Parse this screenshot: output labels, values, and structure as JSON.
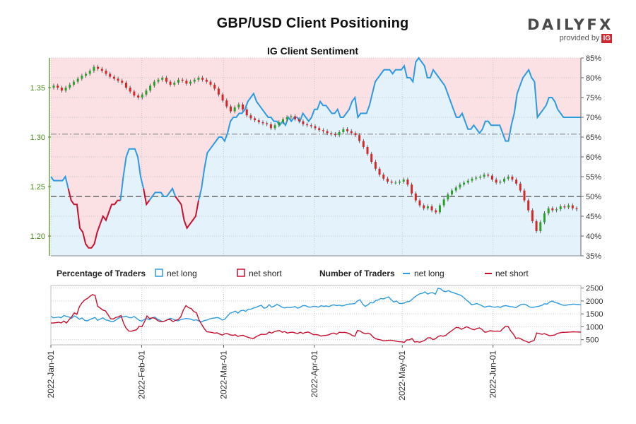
{
  "header": {
    "title": "GBP/USD Client Positioning",
    "subtitle": "IG Client Sentiment",
    "logo_main": "DAILYFX",
    "logo_sub": "provided by",
    "logo_badge": "IG"
  },
  "colors": {
    "up": "#2ca02c",
    "down": "#d62728",
    "net_long": "#2e9ae0",
    "net_short": "#c7102e",
    "long_fill": "#e3f2fb",
    "short_fill": "#fbe1e3"
  },
  "chart_data": [
    {
      "type": "candlestick",
      "y_left_ticks": [
        "1.20",
        "1.25",
        "1.30",
        "1.35"
      ],
      "y_left_range": [
        1.18,
        1.38
      ],
      "y_right_ticks": [
        "35%",
        "40%",
        "45%",
        "50%",
        "55%",
        "60%",
        "65%",
        "70%",
        "75%",
        "80%",
        "85%"
      ],
      "y_right_range": [
        35,
        85
      ],
      "reference_lines": [
        1.303,
        50
      ],
      "closes": [
        1.352,
        1.35,
        1.347,
        1.35,
        1.353,
        1.356,
        1.359,
        1.362,
        1.364,
        1.367,
        1.371,
        1.369,
        1.367,
        1.364,
        1.361,
        1.359,
        1.357,
        1.355,
        1.35,
        1.346,
        1.342,
        1.34,
        1.343,
        1.347,
        1.352,
        1.356,
        1.358,
        1.36,
        1.356,
        1.353,
        1.355,
        1.358,
        1.357,
        1.354,
        1.356,
        1.358,
        1.36,
        1.358,
        1.356,
        1.353,
        1.349,
        1.343,
        1.337,
        1.331,
        1.326,
        1.33,
        1.333,
        1.328,
        1.322,
        1.319,
        1.317,
        1.315,
        1.314,
        1.313,
        1.309,
        1.312,
        1.315,
        1.318,
        1.32,
        1.321,
        1.318,
        1.316,
        1.313,
        1.312,
        1.311,
        1.309,
        1.307,
        1.306,
        1.304,
        1.303,
        1.302,
        1.305,
        1.308,
        1.306,
        1.304,
        1.302,
        1.296,
        1.29,
        1.283,
        1.275,
        1.268,
        1.262,
        1.258,
        1.255,
        1.254,
        1.254,
        1.255,
        1.257,
        1.252,
        1.243,
        1.236,
        1.231,
        1.228,
        1.23,
        1.226,
        1.224,
        1.231,
        1.237,
        1.242,
        1.246,
        1.249,
        1.252,
        1.254,
        1.256,
        1.258,
        1.259,
        1.26,
        1.262,
        1.261,
        1.257,
        1.254,
        1.255,
        1.258,
        1.26,
        1.257,
        1.253,
        1.246,
        1.236,
        1.226,
        1.215,
        1.205,
        1.214,
        1.223,
        1.228,
        1.226,
        1.227,
        1.23,
        1.229,
        1.231,
        1.228,
        1.227
      ],
      "pct_long_series": {
        "name": "net long",
        "values": [
          55,
          54,
          54,
          54,
          54,
          55,
          52,
          49,
          48,
          48,
          42,
          41,
          38,
          37,
          37,
          38,
          41,
          43,
          45,
          44,
          46,
          48,
          48,
          49,
          49,
          55,
          60,
          62,
          62,
          62,
          60,
          55,
          52,
          48,
          49,
          50,
          51,
          51,
          51,
          50,
          50,
          51,
          52,
          50,
          49,
          48,
          44,
          42,
          43,
          44,
          45,
          49,
          52,
          57,
          61,
          62,
          63,
          64,
          65,
          65,
          64,
          66,
          69,
          70,
          70,
          71,
          71,
          72,
          74,
          75,
          76,
          74,
          73,
          72,
          71,
          70,
          70,
          69,
          69,
          68,
          69,
          68,
          70,
          69,
          70,
          70,
          69,
          71,
          70,
          69,
          70,
          72,
          72,
          74,
          73,
          73,
          72,
          71,
          71,
          72,
          70,
          70,
          71,
          72,
          74,
          75,
          70,
          71,
          71,
          71,
          73,
          76,
          79,
          80,
          81,
          82,
          82,
          82,
          81,
          82,
          82,
          82,
          83,
          80,
          80,
          79,
          84,
          85,
          84,
          83,
          80,
          80,
          82,
          81,
          80,
          79,
          78,
          76,
          74,
          72,
          70,
          70,
          71,
          69,
          67,
          67,
          68,
          67,
          66,
          67,
          69,
          69,
          68,
          68,
          68,
          68,
          66,
          64,
          64,
          68,
          71,
          76,
          78,
          80,
          81,
          82,
          80,
          79,
          70,
          71,
          72,
          73,
          75,
          75,
          74,
          72,
          71,
          70,
          70,
          70,
          70,
          70,
          70,
          70
        ]
      },
      "traders_axis_ticks": [
        "500",
        "1000",
        "1500",
        "2000",
        "2500"
      ],
      "traders_axis_range": [
        300,
        2600
      ],
      "x_tick_labels": [
        "2022-Jan-01",
        "2022-Feb-01",
        "2022-Mar-01",
        "2022-Apr-01",
        "2022-May-01",
        "2022-Jun-01"
      ]
    },
    {
      "type": "line",
      "series_net_long_values": [
        1400,
        1350,
        1360,
        1380,
        1350,
        1440,
        1400,
        1380,
        1330,
        1420,
        1370,
        1290,
        1340,
        1250,
        1230,
        1280,
        1320,
        1360,
        1250,
        1300,
        1350,
        1270,
        1250,
        1210,
        1200,
        1260,
        1330,
        1380,
        1390,
        1410,
        1360,
        1350,
        1400,
        1330,
        1250,
        1220,
        1290,
        1310,
        1270,
        1350,
        1380,
        1300,
        1250,
        1200,
        1230,
        1280,
        1330,
        1300,
        1250,
        1230,
        1280,
        1300,
        1320,
        1310,
        1290,
        1250,
        1270,
        1220,
        1190,
        1240,
        1260,
        1300,
        1330,
        1340,
        1360,
        1330,
        1260,
        1300,
        1420,
        1530,
        1560,
        1610,
        1530,
        1620,
        1640,
        1600,
        1680,
        1680,
        1730,
        1750,
        1800,
        1830,
        1720,
        1740,
        1860,
        1760,
        1800,
        1870,
        1820,
        1760,
        1730,
        1760,
        1740,
        1760,
        1780,
        1720,
        1760,
        1820,
        1820,
        1770,
        1760,
        1790,
        1790,
        1760,
        1820,
        1790,
        1810,
        1780,
        1830,
        1850,
        1820,
        1840,
        1810,
        1830,
        1870,
        1880,
        1890,
        1900,
        2000,
        2050,
        1880,
        1790,
        1850,
        1940,
        1920,
        2020,
        2040,
        2100,
        2080,
        2120,
        2160,
        2050,
        1960,
        2000,
        1910,
        1900,
        1920,
        1970,
        1980,
        2060,
        2150,
        2220,
        2280,
        2300,
        2350,
        2270,
        2310,
        2320,
        2260,
        2490,
        2470,
        2390,
        2360,
        2400,
        2350,
        2320,
        2280,
        2250,
        2210,
        2120,
        2030,
        1950,
        1850,
        1880,
        1900,
        1860,
        1810,
        1760,
        1790,
        1800,
        1770,
        1760,
        1780,
        1750,
        1800,
        1820,
        1800,
        1780,
        1770,
        1740,
        1810,
        1860,
        1880,
        1850,
        1780,
        1750,
        1760,
        1780,
        1800,
        1830,
        1890,
        1880,
        1960,
        2000,
        1940,
        1920,
        1880,
        1840,
        1830,
        1850,
        1860,
        1880,
        1870,
        1860,
        1850
      ]
    }
  ],
  "legend": {
    "pct_title": "Percentage of Traders",
    "pct_long": "net long",
    "pct_short": "net short",
    "num_title": "Number of Traders",
    "num_long": "net long",
    "num_short": "net short"
  }
}
